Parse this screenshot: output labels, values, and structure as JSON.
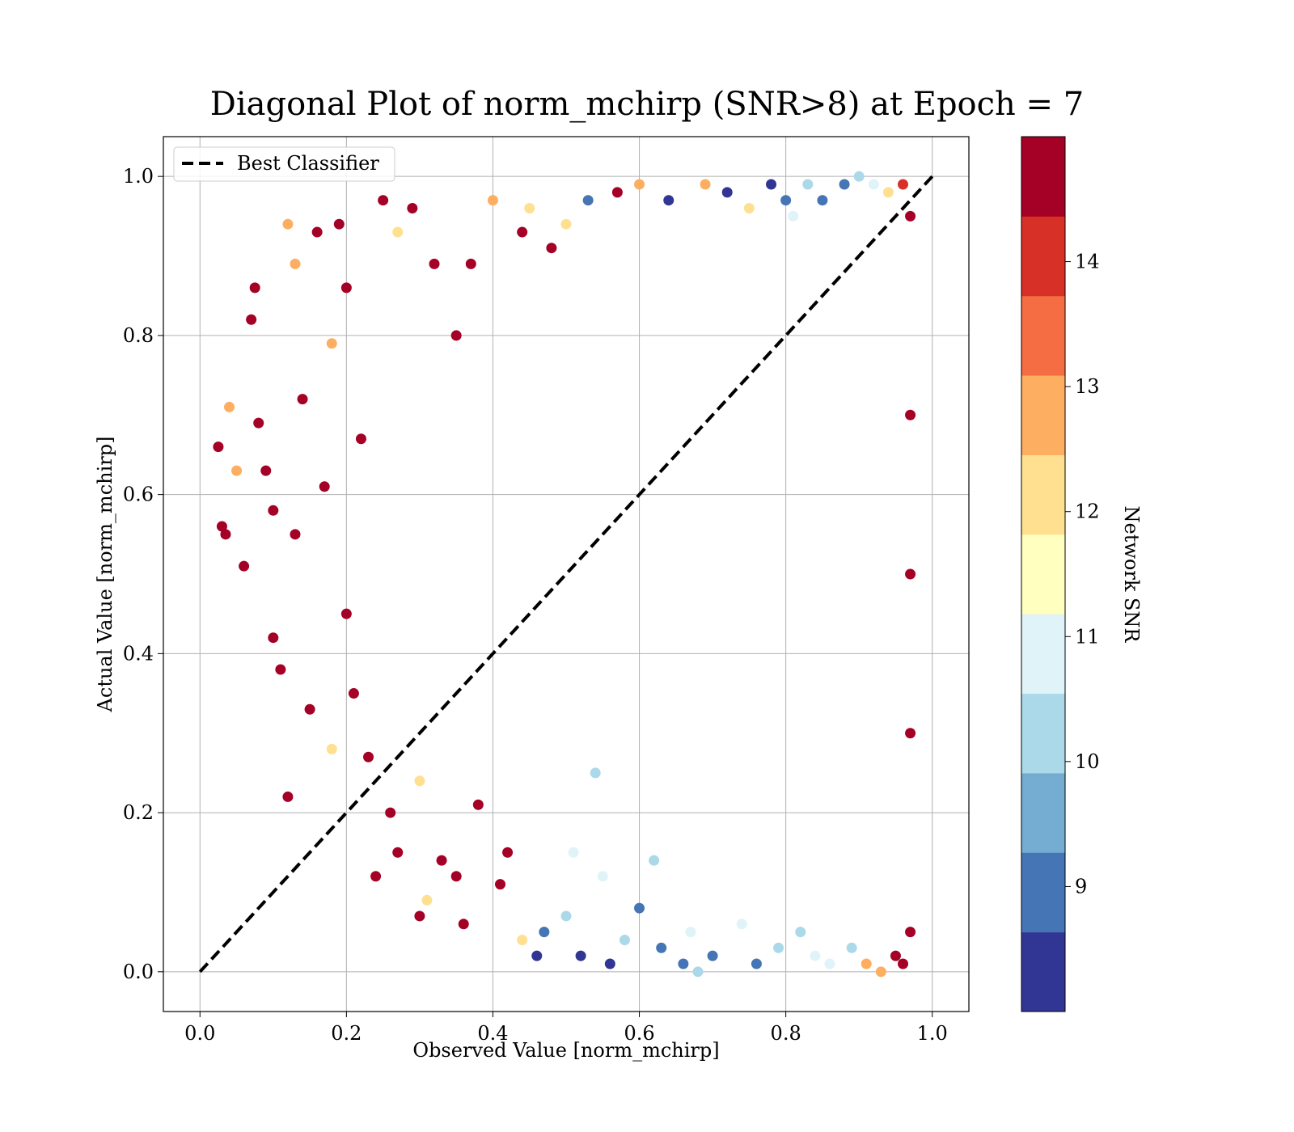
{
  "chart_data": {
    "type": "scatter",
    "title": "Diagonal Plot of norm_mchirp (SNR>8) at Epoch = 7",
    "xlabel": "Observed Value [norm_mchirp]",
    "ylabel": "Actual Value [norm_mchirp]",
    "xlim": [
      -0.05,
      1.05
    ],
    "ylim": [
      -0.05,
      1.05
    ],
    "xticks": [
      "0.0",
      "0.2",
      "0.4",
      "0.6",
      "0.8",
      "1.0"
    ],
    "yticks": [
      "0.0",
      "0.2",
      "0.4",
      "0.6",
      "0.8",
      "1.0"
    ],
    "grid": true,
    "legend": {
      "position": "top-left",
      "entries": [
        {
          "name": "Best Classifier",
          "style": "dashed",
          "color": "#000000"
        }
      ]
    },
    "reference_line": {
      "x": [
        0.0,
        1.0
      ],
      "y": [
        0.0,
        1.0
      ]
    },
    "colorbar": {
      "label": "Network SNR",
      "ticks": [
        "9",
        "10",
        "11",
        "12",
        "13",
        "14"
      ],
      "tick_values": [
        9,
        10,
        11,
        12,
        13,
        14
      ],
      "range": [
        8.0,
        15.0
      ],
      "colors": [
        "#313695",
        "#4575b4",
        "#74add1",
        "#abd9e9",
        "#e0f3f8",
        "#ffffbf",
        "#fee090",
        "#fdae61",
        "#f46d43",
        "#d73027",
        "#a50026"
      ]
    },
    "points": [
      [
        0.025,
        0.66,
        15
      ],
      [
        0.03,
        0.56,
        15
      ],
      [
        0.035,
        0.55,
        15
      ],
      [
        0.04,
        0.71,
        13
      ],
      [
        0.05,
        0.63,
        13
      ],
      [
        0.06,
        0.51,
        15
      ],
      [
        0.07,
        0.82,
        15
      ],
      [
        0.075,
        0.86,
        15
      ],
      [
        0.08,
        0.69,
        15
      ],
      [
        0.09,
        0.63,
        15
      ],
      [
        0.1,
        0.58,
        15
      ],
      [
        0.1,
        0.42,
        15
      ],
      [
        0.11,
        0.38,
        15
      ],
      [
        0.12,
        0.22,
        15
      ],
      [
        0.12,
        0.94,
        13
      ],
      [
        0.13,
        0.55,
        15
      ],
      [
        0.13,
        0.89,
        13
      ],
      [
        0.14,
        0.72,
        15
      ],
      [
        0.15,
        0.33,
        15
      ],
      [
        0.16,
        0.93,
        15
      ],
      [
        0.17,
        0.61,
        15
      ],
      [
        0.18,
        0.79,
        13
      ],
      [
        0.18,
        0.28,
        12
      ],
      [
        0.19,
        0.94,
        15
      ],
      [
        0.2,
        0.86,
        15
      ],
      [
        0.2,
        0.45,
        15
      ],
      [
        0.21,
        0.35,
        15
      ],
      [
        0.22,
        0.67,
        15
      ],
      [
        0.23,
        0.27,
        15
      ],
      [
        0.24,
        0.12,
        15
      ],
      [
        0.25,
        0.97,
        15
      ],
      [
        0.26,
        0.2,
        15
      ],
      [
        0.27,
        0.93,
        12
      ],
      [
        0.27,
        0.15,
        15
      ],
      [
        0.29,
        0.96,
        15
      ],
      [
        0.3,
        0.07,
        15
      ],
      [
        0.3,
        0.24,
        12
      ],
      [
        0.31,
        0.09,
        12
      ],
      [
        0.32,
        0.89,
        15
      ],
      [
        0.33,
        0.14,
        15
      ],
      [
        0.35,
        0.12,
        15
      ],
      [
        0.35,
        0.8,
        15
      ],
      [
        0.36,
        0.06,
        15
      ],
      [
        0.37,
        0.89,
        15
      ],
      [
        0.38,
        0.21,
        15
      ],
      [
        0.4,
        0.97,
        13
      ],
      [
        0.41,
        0.11,
        15
      ],
      [
        0.42,
        0.15,
        15
      ],
      [
        0.44,
        0.04,
        12
      ],
      [
        0.44,
        0.93,
        15
      ],
      [
        0.45,
        0.96,
        12
      ],
      [
        0.46,
        0.02,
        8
      ],
      [
        0.47,
        0.05,
        9
      ],
      [
        0.48,
        0.91,
        15
      ],
      [
        0.5,
        0.94,
        12
      ],
      [
        0.5,
        0.07,
        10
      ],
      [
        0.51,
        0.15,
        11
      ],
      [
        0.52,
        0.02,
        8
      ],
      [
        0.53,
        0.97,
        9
      ],
      [
        0.54,
        0.25,
        10
      ],
      [
        0.55,
        0.12,
        11
      ],
      [
        0.56,
        0.01,
        8
      ],
      [
        0.57,
        0.98,
        15
      ],
      [
        0.58,
        0.04,
        10
      ],
      [
        0.6,
        0.99,
        13
      ],
      [
        0.6,
        0.08,
        9
      ],
      [
        0.62,
        0.14,
        10
      ],
      [
        0.63,
        0.03,
        9
      ],
      [
        0.64,
        0.97,
        8
      ],
      [
        0.66,
        0.01,
        9
      ],
      [
        0.67,
        0.05,
        11
      ],
      [
        0.68,
        0.0,
        10
      ],
      [
        0.69,
        0.99,
        13
      ],
      [
        0.7,
        0.02,
        9
      ],
      [
        0.72,
        0.98,
        8
      ],
      [
        0.74,
        0.06,
        11
      ],
      [
        0.75,
        0.96,
        12
      ],
      [
        0.76,
        0.01,
        9
      ],
      [
        0.78,
        0.99,
        8
      ],
      [
        0.79,
        0.03,
        10
      ],
      [
        0.8,
        0.97,
        9
      ],
      [
        0.81,
        0.95,
        11
      ],
      [
        0.82,
        0.05,
        10
      ],
      [
        0.83,
        0.99,
        10
      ],
      [
        0.84,
        0.02,
        11
      ],
      [
        0.85,
        0.97,
        9
      ],
      [
        0.86,
        0.01,
        11
      ],
      [
        0.88,
        0.99,
        9
      ],
      [
        0.89,
        0.03,
        10
      ],
      [
        0.9,
        1.0,
        10
      ],
      [
        0.91,
        0.01,
        13
      ],
      [
        0.92,
        0.99,
        11
      ],
      [
        0.93,
        0.0,
        13
      ],
      [
        0.94,
        0.98,
        12
      ],
      [
        0.95,
        0.02,
        15
      ],
      [
        0.96,
        0.99,
        14
      ],
      [
        0.96,
        0.01,
        15
      ],
      [
        0.97,
        0.95,
        15
      ],
      [
        0.97,
        0.05,
        15
      ],
      [
        0.97,
        0.5,
        15
      ],
      [
        0.97,
        0.3,
        15
      ],
      [
        0.97,
        0.7,
        15
      ]
    ]
  }
}
